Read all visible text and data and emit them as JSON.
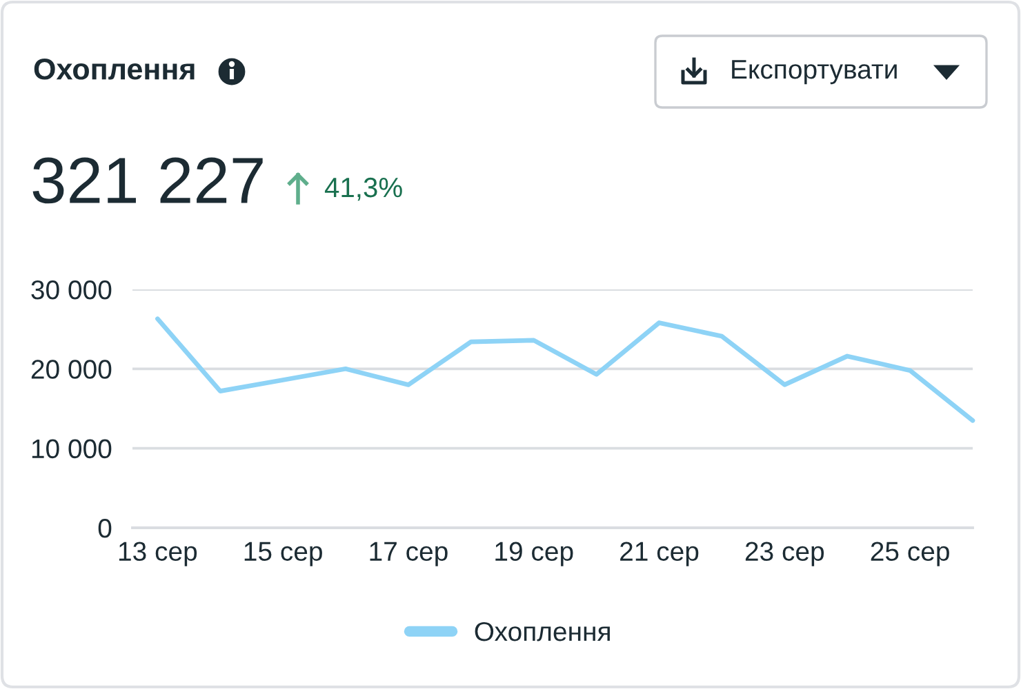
{
  "chart_data": {
    "type": "line",
    "title": "Охоплення",
    "subtitle": "321 227",
    "annotations": [
      "41,3%",
      "Експортувати"
    ],
    "categories": [
      "13 сер",
      null,
      "15 сер",
      null,
      "17 сер",
      null,
      "19 сер",
      null,
      "21 сер",
      null,
      "23 сер",
      null,
      "25 сер",
      null
    ],
    "series": [
      {
        "name": "Охоплення",
        "color": "#8ed3f6",
        "values": [
          26300,
          17200,
          18600,
          20000,
          18000,
          23400,
          23600,
          19300,
          25800,
          24100,
          18000,
          21600,
          19800,
          13500
        ]
      }
    ],
    "ylim": [
      0,
      30000
    ],
    "yticks": [
      0,
      {
        "value": 10000,
        "label": "10 000"
      },
      {
        "value": 20000,
        "label": "20 000"
      },
      {
        "value": 30000,
        "label": "30 000"
      }
    ],
    "grid": "y",
    "legend": "bottom",
    "marker": "none",
    "line_style": "solid"
  }
}
